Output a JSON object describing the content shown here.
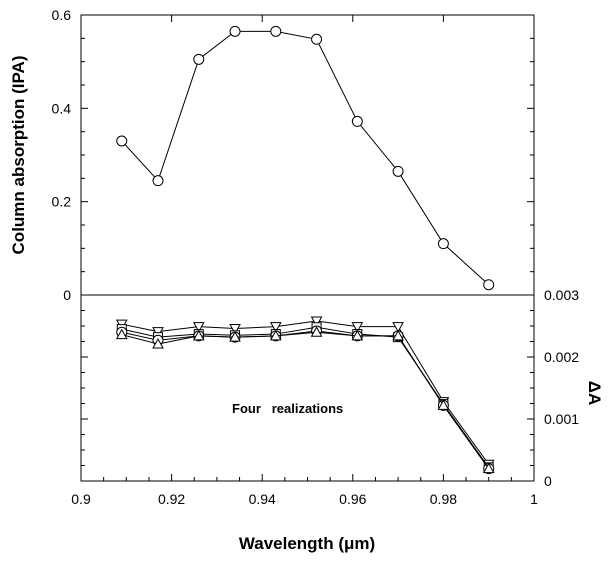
{
  "chart_data": [
    {
      "type": "line",
      "title": "",
      "xlabel": "Wavelength (μm)",
      "ylabel": "Column absorption (IPA)",
      "xlim": [
        0.9,
        1.0
      ],
      "ylim": [
        0,
        0.6
      ],
      "x_ticks": [
        "0.9",
        "0.92",
        "0.94",
        "0.96",
        "0.98",
        "1"
      ],
      "y_ticks": [
        "0",
        "0.2",
        "0.4",
        "0.6"
      ],
      "grid": false,
      "series": [
        {
          "marker": "circle",
          "x": [
            0.909,
            0.917,
            0.926,
            0.934,
            0.943,
            0.952,
            0.961,
            0.97,
            0.98,
            0.99
          ],
          "y": [
            0.33,
            0.245,
            0.505,
            0.565,
            0.565,
            0.548,
            0.372,
            0.265,
            0.11,
            0.022
          ]
        }
      ]
    },
    {
      "type": "line",
      "title": "",
      "xlabel": "Wavelength (μm)",
      "ylabel": "ΔA",
      "xlim": [
        0.9,
        1.0
      ],
      "ylim": [
        0,
        0.003
      ],
      "y_ticks": [
        "0",
        "0.001",
        "0.002",
        "0.003"
      ],
      "y_axis_side": "right",
      "annotation": "Four   realizations",
      "grid": false,
      "series": [
        {
          "marker": "triangle-down",
          "x": [
            0.909,
            0.917,
            0.926,
            0.934,
            0.943,
            0.952,
            0.961,
            0.97,
            0.98,
            0.99
          ],
          "y": [
            0.00253,
            0.00241,
            0.00249,
            0.00246,
            0.00249,
            0.00258,
            0.00249,
            0.00249,
            0.00128,
            0.00027
          ]
        },
        {
          "marker": "square",
          "x": [
            0.909,
            0.917,
            0.926,
            0.934,
            0.943,
            0.952,
            0.961,
            0.97,
            0.98,
            0.99
          ],
          "y": [
            0.00245,
            0.00232,
            0.00237,
            0.00235,
            0.00237,
            0.00248,
            0.00237,
            0.00232,
            0.00124,
            0.00022
          ]
        },
        {
          "marker": "circle",
          "x": [
            0.909,
            0.917,
            0.926,
            0.934,
            0.943,
            0.952,
            0.961,
            0.97,
            0.98,
            0.99
          ],
          "y": [
            0.0024,
            0.00227,
            0.00234,
            0.00232,
            0.00234,
            0.00242,
            0.00234,
            0.00234,
            0.00122,
            0.0002
          ]
        },
        {
          "marker": "triangle-up",
          "x": [
            0.909,
            0.917,
            0.926,
            0.934,
            0.943,
            0.952,
            0.961,
            0.97,
            0.98,
            0.99
          ],
          "y": [
            0.00236,
            0.00221,
            0.00234,
            0.00232,
            0.00234,
            0.0024,
            0.00234,
            0.00234,
            0.00122,
            0.0002
          ]
        }
      ]
    }
  ]
}
